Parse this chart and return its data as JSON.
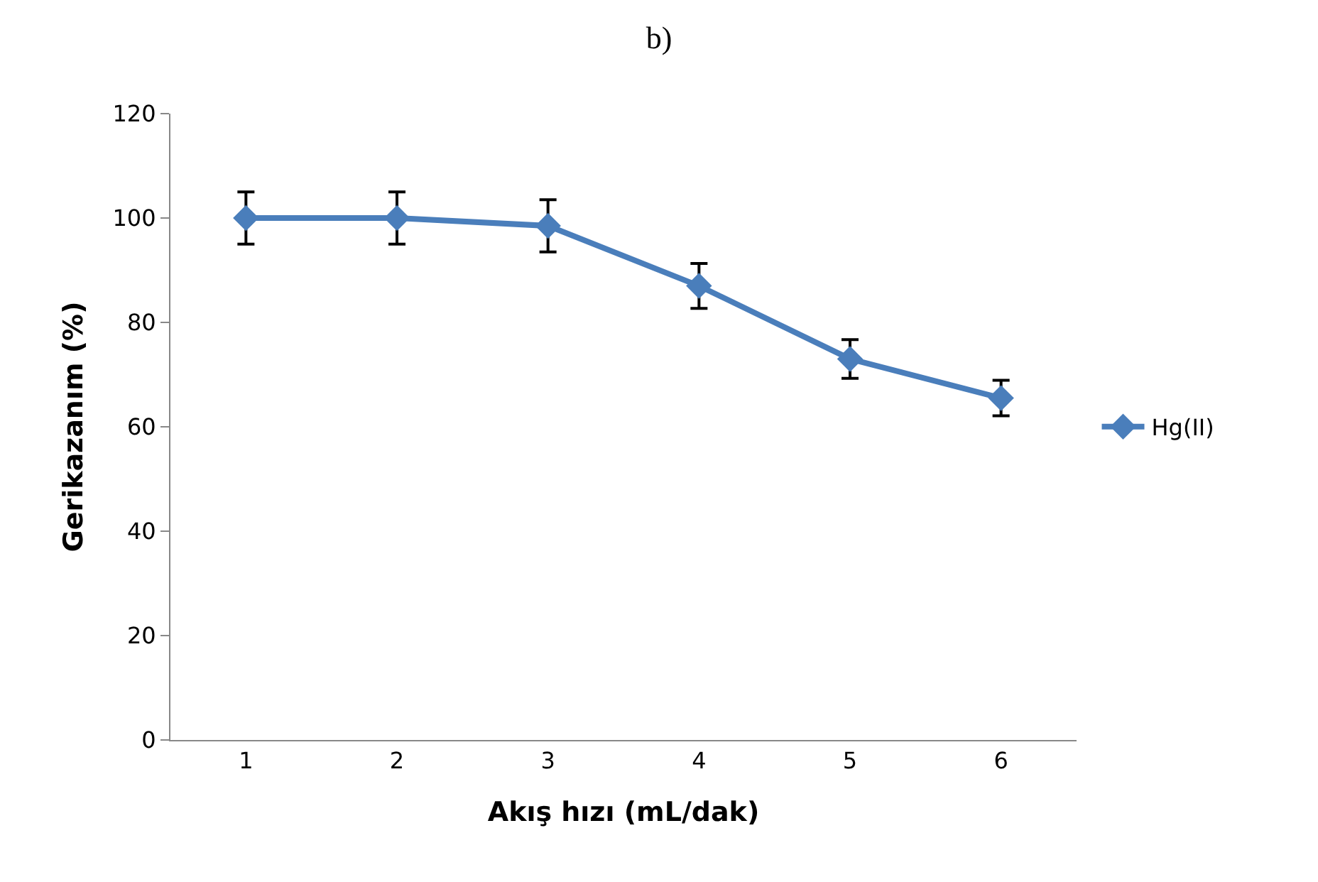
{
  "chart_data": {
    "type": "line",
    "title": "b)",
    "xlabel": "Akış hızı (mL/dak)",
    "ylabel": "Gerikazanım (%)",
    "categories": [
      "1",
      "2",
      "3",
      "4",
      "5",
      "6"
    ],
    "series": [
      {
        "name": "Hg(II)",
        "color": "#4a7ebb",
        "values": [
          100,
          100,
          98.5,
          87,
          73,
          65.5
        ],
        "errors": [
          5,
          5,
          5,
          4.3,
          3.7,
          3.4
        ]
      }
    ],
    "ylim": [
      0,
      120
    ],
    "yticks": [
      0,
      20,
      40,
      60,
      80,
      100,
      120
    ],
    "legend": "right",
    "marker": "diamond",
    "line_style": "solid"
  }
}
